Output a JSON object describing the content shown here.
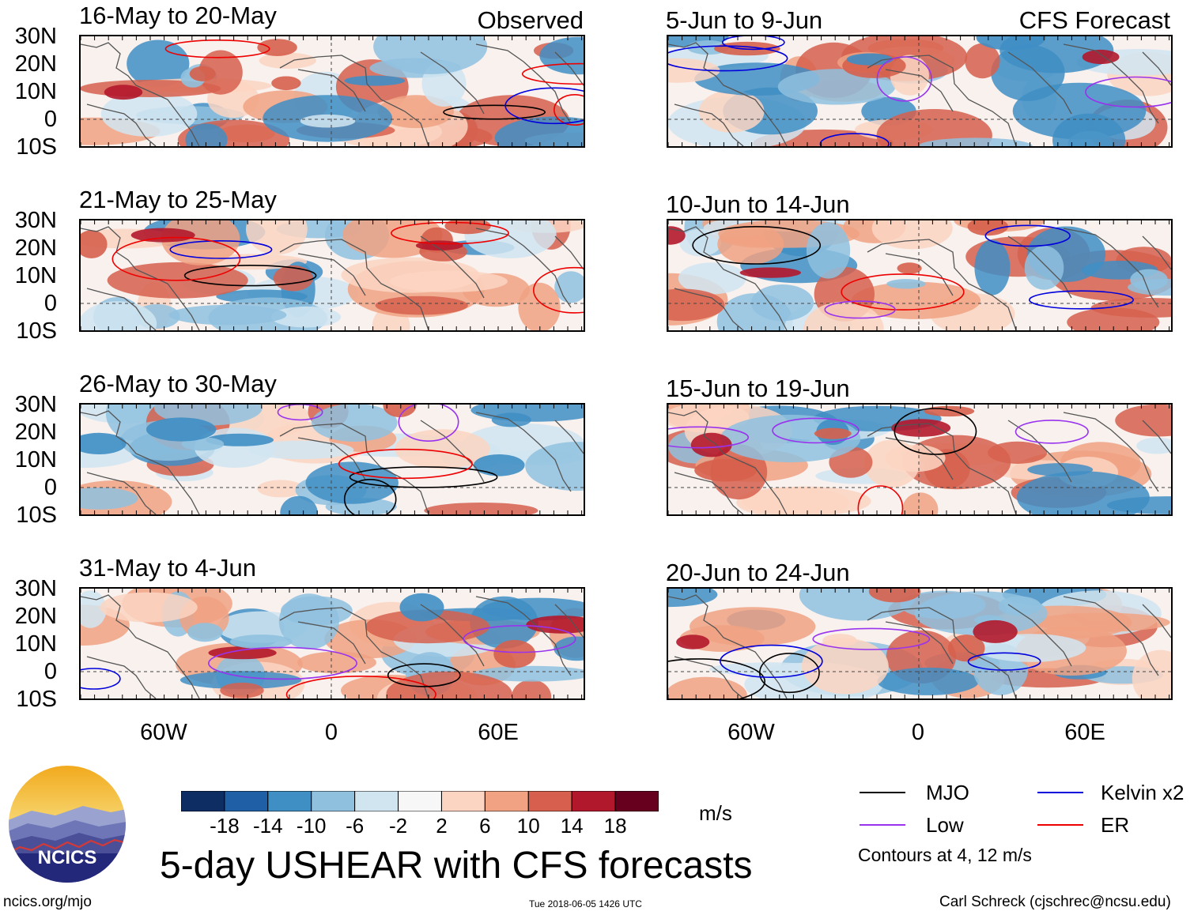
{
  "title": "5-day USHEAR with CFS forecasts",
  "columns": {
    "left_tag": "Observed",
    "right_tag": "CFS Forecast"
  },
  "panels": {
    "left": [
      "16-May to 20-May",
      "21-May to 25-May",
      "26-May to 30-May",
      "31-May to 4-Jun"
    ],
    "right": [
      "5-Jun to 9-Jun",
      "10-Jun to 14-Jun",
      "15-Jun to 19-Jun",
      "20-Jun to 24-Jun"
    ]
  },
  "lat_labels": [
    "30N",
    "20N",
    "10N",
    "0",
    "10S"
  ],
  "lon_labels": [
    "60W",
    "0",
    "60E"
  ],
  "colorbar": {
    "unit": "m/s",
    "ticks": [
      "-18",
      "-14",
      "-10",
      "-6",
      "-2",
      "2",
      "6",
      "10",
      "14",
      "18"
    ],
    "colors": [
      "#0d2d63",
      "#1f5fa6",
      "#3f8ec4",
      "#8fc1df",
      "#d1e5f1",
      "#f7f7f7",
      "#fbd5c2",
      "#f0a283",
      "#d6604d",
      "#b2182b",
      "#67001f"
    ]
  },
  "legend": {
    "items": [
      {
        "label": "MJO",
        "color": "#000000"
      },
      {
        "label": "Kelvin x2",
        "color": "#0000dd"
      },
      {
        "label": "Low",
        "color": "#9933ee"
      },
      {
        "label": "ER",
        "color": "#ee0000"
      }
    ],
    "note": "Contours at 4, 12 m/s"
  },
  "logo": {
    "text": "NCICS"
  },
  "footer": {
    "left": "ncics.org/mjo",
    "center": "Tue 2018-06-05 1426 UTC",
    "right": "Carl Schreck (cjschrec@ncsu.edu)"
  }
}
